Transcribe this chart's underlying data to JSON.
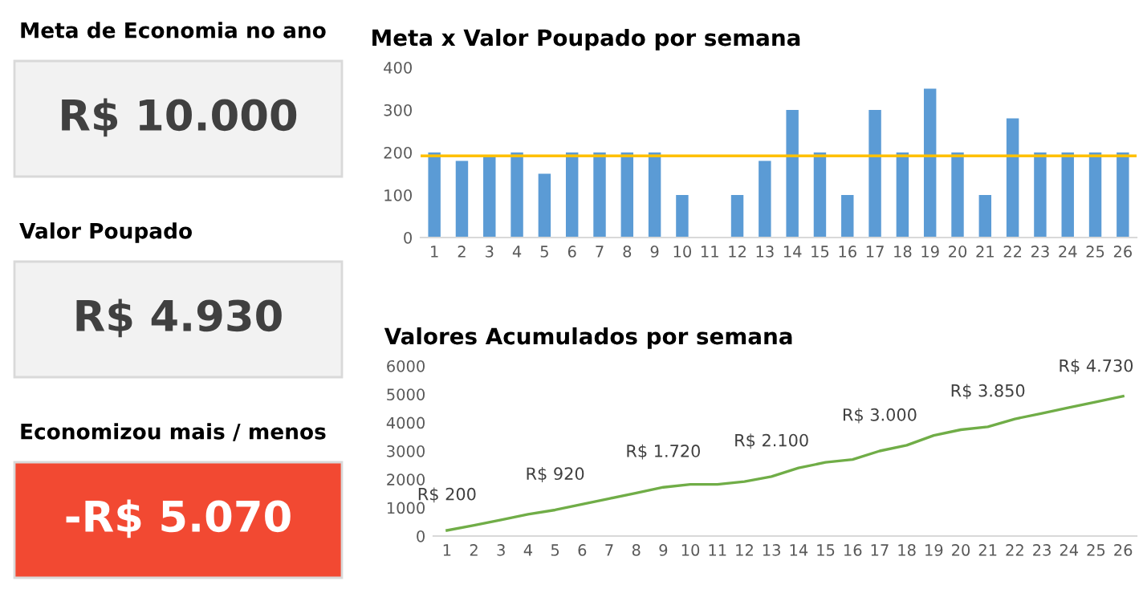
{
  "chart_data": [
    {
      "type": "other",
      "annotations": [
        "Meta de Economia no ano",
        "R$ 10.000",
        "Valor Poupado",
        "R$ 4.930",
        "Economizou mais / menos",
        "-R$ 5.070"
      ],
      "colors": [
        "#f2f2f2",
        "#f2f2f2",
        "#f24932"
      ]
    },
    {
      "type": "bar",
      "title": "Meta x Valor Poupado por semana",
      "categories": [
        "1",
        "2",
        "3",
        "4",
        "5",
        "6",
        "7",
        "8",
        "9",
        "10",
        "11",
        "12",
        "13",
        "14",
        "15",
        "16",
        "17",
        "18",
        "19",
        "20",
        "21",
        "22",
        "23",
        "24",
        "25",
        "26"
      ],
      "series": [
        {
          "color": "#5b9bd5",
          "values": [
            200,
            180,
            190,
            200,
            150,
            200,
            200,
            200,
            200,
            100,
            0,
            100,
            180,
            300,
            200,
            100,
            300,
            200,
            350,
            200,
            100,
            280,
            200,
            200,
            200,
            200
          ]
        }
      ],
      "ref_lines": [
        {
          "axis": "y",
          "value": 192,
          "color": "#ffc000"
        }
      ],
      "ylim": [
        0,
        400
      ],
      "yticks": [
        0,
        100,
        200,
        300,
        400
      ],
      "grid": false,
      "legend": false
    },
    {
      "type": "line",
      "title": "Valores Acumulados por semana",
      "categories": [
        "1",
        "2",
        "3",
        "4",
        "5",
        "6",
        "7",
        "8",
        "9",
        "10",
        "11",
        "12",
        "13",
        "14",
        "15",
        "16",
        "17",
        "18",
        "19",
        "20",
        "21",
        "22",
        "23",
        "24",
        "25",
        "26"
      ],
      "series": [
        {
          "color": "#70ad47",
          "values": [
            200,
            380,
            570,
            770,
            920,
            1120,
            1320,
            1520,
            1720,
            1820,
            1820,
            1920,
            2100,
            2400,
            2600,
            2700,
            3000,
            3200,
            3550,
            3750,
            3850,
            4130,
            4330,
            4530,
            4730,
            4930
          ],
          "value_labels": [
            "R$ 200",
            null,
            null,
            null,
            "R$ 920",
            null,
            null,
            null,
            "R$ 1.720",
            null,
            null,
            null,
            "R$ 2.100",
            null,
            null,
            null,
            "R$ 3.000",
            null,
            null,
            null,
            "R$ 3.850",
            null,
            null,
            null,
            "R$ 4.730",
            null
          ]
        }
      ],
      "ylim": [
        0,
        6000
      ],
      "yticks": [
        0,
        1000,
        2000,
        3000,
        4000,
        5000,
        6000
      ],
      "grid": false,
      "legend": false,
      "marker": "none",
      "line_style": "solid"
    }
  ]
}
